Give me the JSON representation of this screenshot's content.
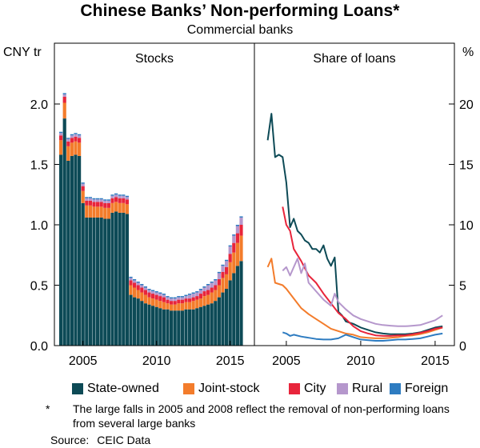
{
  "title": "Chinese Banks’ Non-performing Loans*",
  "subtitle": "Commercial banks",
  "note_star": "*",
  "note": "The large falls in 2005 and 2008 reflect the removal of non-performing loans from several large banks",
  "source_label": "Source:",
  "source_value": "CEIC Data",
  "colors": {
    "State-owned": "#0d4a56",
    "Joint-stock": "#f37c2b",
    "City": "#e8253b",
    "Rural": "#b597cc",
    "Foreign": "#2e7cc1"
  },
  "chart_data": [
    {
      "type": "bar",
      "panel_title": "Stocks",
      "stacked": true,
      "ylabel": "CNY tr",
      "ylim": [
        0,
        2.0
      ],
      "yticks": [
        "0.0",
        "0.5",
        "1.0",
        "1.5",
        "2.0"
      ],
      "xticks": [
        "2005",
        "2010",
        "2015"
      ],
      "x": [
        "2003Q3",
        "2003Q4",
        "2004Q1",
        "2004Q2",
        "2004Q3",
        "2004Q4",
        "2005Q1",
        "2005Q2",
        "2005Q3",
        "2005Q4",
        "2006Q1",
        "2006Q2",
        "2006Q3",
        "2006Q4",
        "2007Q1",
        "2007Q2",
        "2007Q3",
        "2007Q4",
        "2008Q1",
        "2008Q2",
        "2008Q3",
        "2008Q4",
        "2009Q1",
        "2009Q2",
        "2009Q3",
        "2009Q4",
        "2010Q1",
        "2010Q2",
        "2010Q3",
        "2010Q4",
        "2011Q1",
        "2011Q2",
        "2011Q3",
        "2011Q4",
        "2012Q1",
        "2012Q2",
        "2012Q3",
        "2012Q4",
        "2013Q1",
        "2013Q2",
        "2013Q3",
        "2013Q4",
        "2014Q1",
        "2014Q2",
        "2014Q3",
        "2014Q4",
        "2015Q1",
        "2015Q2",
        "2015Q3",
        "2015Q4"
      ],
      "series": [
        {
          "name": "State-owned",
          "values": [
            1.58,
            1.88,
            1.53,
            1.57,
            1.58,
            1.57,
            1.18,
            1.06,
            1.06,
            1.06,
            1.06,
            1.06,
            1.05,
            1.05,
            1.1,
            1.11,
            1.1,
            1.1,
            1.09,
            0.42,
            0.4,
            0.39,
            0.37,
            0.35,
            0.34,
            0.33,
            0.32,
            0.31,
            0.3,
            0.3,
            0.29,
            0.29,
            0.29,
            0.29,
            0.3,
            0.3,
            0.3,
            0.31,
            0.32,
            0.33,
            0.34,
            0.35,
            0.37,
            0.4,
            0.44,
            0.47,
            0.54,
            0.6,
            0.66,
            0.7
          ]
        },
        {
          "name": "Joint-stock",
          "values": [
            0.12,
            0.13,
            0.12,
            0.11,
            0.11,
            0.11,
            0.1,
            0.1,
            0.1,
            0.09,
            0.09,
            0.09,
            0.09,
            0.09,
            0.08,
            0.08,
            0.08,
            0.08,
            0.08,
            0.08,
            0.08,
            0.07,
            0.07,
            0.07,
            0.06,
            0.06,
            0.06,
            0.06,
            0.06,
            0.05,
            0.05,
            0.05,
            0.06,
            0.06,
            0.06,
            0.06,
            0.07,
            0.07,
            0.07,
            0.08,
            0.08,
            0.09,
            0.09,
            0.1,
            0.12,
            0.12,
            0.15,
            0.17,
            0.19,
            0.21
          ]
        },
        {
          "name": "City",
          "values": [
            0.04,
            0.05,
            0.04,
            0.04,
            0.04,
            0.04,
            0.04,
            0.04,
            0.04,
            0.04,
            0.04,
            0.04,
            0.04,
            0.04,
            0.04,
            0.04,
            0.04,
            0.04,
            0.04,
            0.04,
            0.04,
            0.04,
            0.04,
            0.04,
            0.04,
            0.04,
            0.04,
            0.04,
            0.04,
            0.03,
            0.03,
            0.03,
            0.03,
            0.03,
            0.03,
            0.03,
            0.03,
            0.03,
            0.04,
            0.04,
            0.04,
            0.04,
            0.04,
            0.05,
            0.05,
            0.06,
            0.07,
            0.08,
            0.08,
            0.09
          ]
        },
        {
          "name": "Rural",
          "values": [
            0.02,
            0.02,
            0.02,
            0.02,
            0.02,
            0.02,
            0.02,
            0.02,
            0.02,
            0.02,
            0.02,
            0.02,
            0.02,
            0.02,
            0.02,
            0.02,
            0.02,
            0.02,
            0.02,
            0.02,
            0.02,
            0.02,
            0.02,
            0.02,
            0.02,
            0.02,
            0.02,
            0.02,
            0.02,
            0.02,
            0.02,
            0.02,
            0.02,
            0.02,
            0.02,
            0.03,
            0.03,
            0.03,
            0.03,
            0.03,
            0.04,
            0.04,
            0.04,
            0.05,
            0.05,
            0.05,
            0.06,
            0.06,
            0.06,
            0.06
          ]
        },
        {
          "name": "Foreign",
          "values": [
            0.01,
            0.01,
            0.01,
            0.01,
            0.01,
            0.01,
            0.01,
            0.01,
            0.01,
            0.01,
            0.01,
            0.01,
            0.01,
            0.01,
            0.01,
            0.01,
            0.01,
            0.01,
            0.01,
            0.01,
            0.01,
            0.01,
            0.01,
            0.01,
            0.01,
            0.01,
            0.01,
            0.01,
            0.01,
            0.01,
            0.01,
            0.01,
            0.01,
            0.01,
            0.01,
            0.01,
            0.01,
            0.01,
            0.01,
            0.01,
            0.01,
            0.01,
            0.01,
            0.01,
            0.01,
            0.01,
            0.01,
            0.01,
            0.01,
            0.01
          ]
        }
      ]
    },
    {
      "type": "line",
      "panel_title": "Share of loans",
      "ylabel": "%",
      "ylim": [
        0,
        20
      ],
      "yticks": [
        "0",
        "5",
        "10",
        "15",
        "20"
      ],
      "xticks": [
        "2005",
        "2010",
        "2015"
      ],
      "series": [
        {
          "name": "State-owned",
          "x": [
            2003.75,
            2004.0,
            2004.25,
            2004.5,
            2004.75,
            2005.0,
            2005.25,
            2005.5,
            2005.75,
            2006.0,
            2006.25,
            2006.5,
            2006.75,
            2007.0,
            2007.25,
            2007.5,
            2007.75,
            2008.0,
            2008.25,
            2008.5,
            2008.75,
            2009.0,
            2009.5,
            2010.0,
            2010.5,
            2011.0,
            2011.5,
            2012.0,
            2012.5,
            2013.0,
            2013.5,
            2014.0,
            2014.5,
            2015.0,
            2015.5
          ],
          "values": [
            17.0,
            19.2,
            15.6,
            15.8,
            15.6,
            13.5,
            9.8,
            10.5,
            9.5,
            9.2,
            8.7,
            8.5,
            8.0,
            8.0,
            7.7,
            8.3,
            7.2,
            6.6,
            7.3,
            2.8,
            2.5,
            2.0,
            1.8,
            1.5,
            1.3,
            1.1,
            1.0,
            0.95,
            0.95,
            0.95,
            1.0,
            1.1,
            1.3,
            1.5,
            1.6
          ]
        },
        {
          "name": "Joint-stock",
          "x": [
            2003.75,
            2004.0,
            2004.25,
            2004.75,
            2005.0,
            2005.5,
            2006.0,
            2006.5,
            2007.0,
            2007.5,
            2008.0,
            2008.5,
            2009.0,
            2009.5,
            2010.0,
            2010.5,
            2011.0,
            2011.5,
            2012.0,
            2012.5,
            2013.0,
            2013.5,
            2014.0,
            2014.5,
            2015.0,
            2015.5
          ],
          "values": [
            6.5,
            7.2,
            5.2,
            5.0,
            4.7,
            3.9,
            3.1,
            2.6,
            2.2,
            1.8,
            1.4,
            1.2,
            1.0,
            0.9,
            0.7,
            0.65,
            0.6,
            0.6,
            0.65,
            0.7,
            0.8,
            0.85,
            0.95,
            1.1,
            1.3,
            1.5
          ]
        },
        {
          "name": "City",
          "x": [
            2004.75,
            2005.0,
            2005.25,
            2005.5,
            2005.75,
            2006.0,
            2006.5,
            2007.0,
            2007.5,
            2008.0,
            2008.5,
            2009.0,
            2009.5,
            2010.0,
            2010.5,
            2011.0,
            2011.5,
            2012.0,
            2012.5,
            2013.0,
            2013.5,
            2014.0,
            2014.5,
            2015.0,
            2015.5
          ],
          "values": [
            11.5,
            10.0,
            9.5,
            8.0,
            7.5,
            7.0,
            5.8,
            5.2,
            4.3,
            3.5,
            2.7,
            2.2,
            1.6,
            1.2,
            1.0,
            0.85,
            0.8,
            0.8,
            0.85,
            0.85,
            0.95,
            1.05,
            1.2,
            1.4,
            1.5
          ]
        },
        {
          "name": "Rural",
          "x": [
            2004.75,
            2005.0,
            2005.25,
            2005.5,
            2005.75,
            2006.0,
            2006.25,
            2006.5,
            2007.0,
            2007.5,
            2008.0,
            2008.25,
            2008.5,
            2009.0,
            2009.5,
            2010.0,
            2010.5,
            2011.0,
            2011.5,
            2012.0,
            2012.5,
            2013.0,
            2013.5,
            2014.0,
            2014.5,
            2015.0,
            2015.5
          ],
          "values": [
            6.2,
            6.5,
            5.8,
            6.5,
            7.2,
            6.0,
            6.8,
            5.2,
            4.5,
            3.8,
            3.3,
            4.3,
            3.6,
            3.0,
            2.5,
            2.2,
            2.0,
            1.8,
            1.7,
            1.65,
            1.6,
            1.6,
            1.65,
            1.7,
            1.9,
            2.1,
            2.5
          ]
        },
        {
          "name": "Foreign",
          "x": [
            2004.75,
            2005.0,
            2005.25,
            2005.5,
            2006.0,
            2006.5,
            2007.0,
            2007.5,
            2008.0,
            2008.5,
            2009.0,
            2009.5,
            2010.0,
            2010.5,
            2011.0,
            2011.5,
            2012.0,
            2012.5,
            2013.0,
            2013.5,
            2014.0,
            2014.5,
            2015.0,
            2015.5
          ],
          "values": [
            1.1,
            1.0,
            0.8,
            0.9,
            0.75,
            0.65,
            0.55,
            0.5,
            0.5,
            0.6,
            0.9,
            0.7,
            0.5,
            0.45,
            0.4,
            0.4,
            0.45,
            0.5,
            0.5,
            0.55,
            0.6,
            0.75,
            0.9,
            1.0
          ]
        }
      ]
    }
  ],
  "legend": [
    "State-owned",
    "Joint-stock",
    "City",
    "Rural",
    "Foreign"
  ]
}
